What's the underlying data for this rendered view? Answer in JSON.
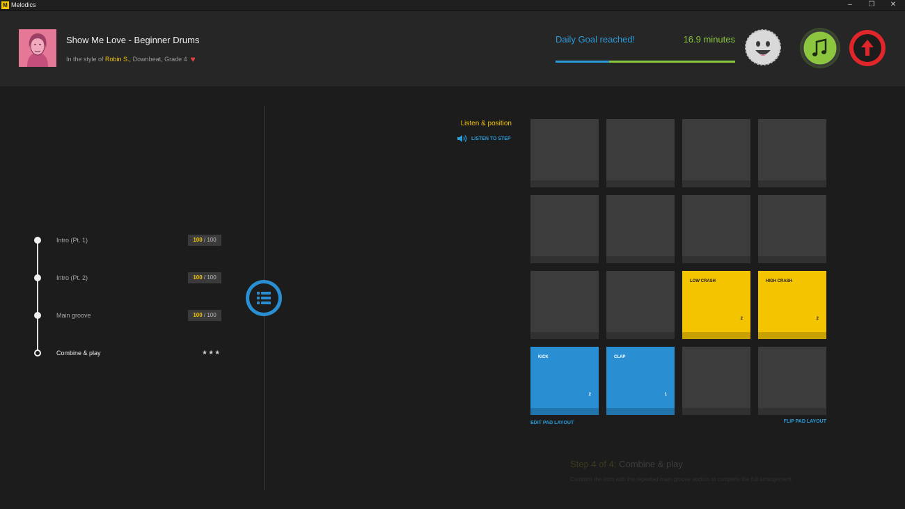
{
  "window": {
    "logo_letter": "M",
    "title": "Melodics",
    "minimize": "–",
    "restore": "❐",
    "close": "✕"
  },
  "song": {
    "title": "Show Me Love - Beginner Drums",
    "style_prefix": "In the style of ",
    "artist": "Robin S.,",
    "details": " Downbeat, Grade 4"
  },
  "goal": {
    "label": "Daily Goal reached!",
    "minutes": "16.9 minutes",
    "progress_fraction": 0.3
  },
  "sections": [
    {
      "label": "Intro (Pt. 1)",
      "score_got": "100",
      "score_total": " / 100"
    },
    {
      "label": "Intro (Pt. 2)",
      "score_got": "100",
      "score_total": " / 100"
    },
    {
      "label": "Main groove",
      "score_got": "100",
      "score_total": " / 100"
    },
    {
      "label": "Combine & play",
      "stars": "★★★"
    }
  ],
  "listen": {
    "title": "Listen & position",
    "step_button": "LISTEN TO STEP"
  },
  "pads": {
    "low_crash": {
      "name": "LOW CRASH",
      "count": "2"
    },
    "high_crash": {
      "name": "HIGH CRASH",
      "count": "2"
    },
    "kick": {
      "name": "KICK",
      "count": "2"
    },
    "clap": {
      "name": "CLAP",
      "count": "1"
    },
    "edit_layout": "EDIT PAD LAYOUT",
    "flip_layout": "FLIP PAD LAYOUT"
  },
  "step": {
    "number": "Step 4 of 4:",
    "name": " Combine & play",
    "description": "Combine the intro with the repeated main groove section to complete the full arrangement."
  },
  "colors": {
    "accent_blue": "#2b9bd8",
    "accent_yellow": "#f5c400",
    "accent_green": "#8cc63f",
    "accent_red": "#e0262b"
  }
}
